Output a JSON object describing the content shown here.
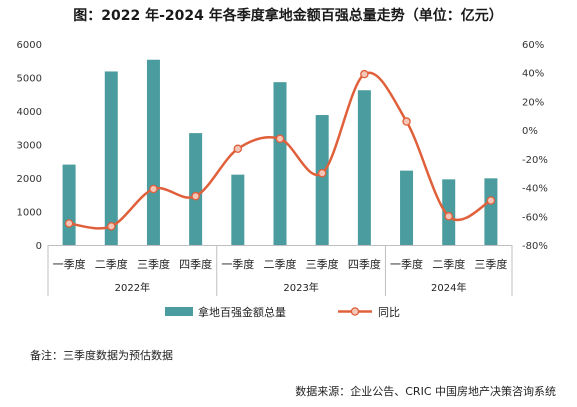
{
  "title": "图：2022 年-2024 年各季度拿地金额百强总量走势（单位：亿元）",
  "note": "备注：三季度数据为预估数据",
  "source": "数据来源：企业公告、CRIC 中国房地产决策咨询系统",
  "colors": {
    "bar": "#4a9c9e",
    "line": "#e0603b",
    "marker_fill": "#f3c6b8"
  },
  "chart_data": {
    "type": "bar",
    "title": "图：2022 年-2024 年各季度拿地金额百强总量走势（单位：亿元）",
    "categories": [
      "一季度",
      "二季度",
      "三季度",
      "四季度",
      "一季度",
      "二季度",
      "三季度",
      "四季度",
      "一季度",
      "二季度",
      "三季度"
    ],
    "groups": [
      {
        "label": "2022年",
        "count": 4
      },
      {
        "label": "2023年",
        "count": 4
      },
      {
        "label": "2024年",
        "count": 3
      }
    ],
    "series": [
      {
        "name": "拿地百强金额总量",
        "type": "bar",
        "axis": "left",
        "values": [
          2400,
          5180,
          5530,
          3340,
          2100,
          4860,
          3880,
          4620,
          2220,
          1960,
          1990
        ]
      },
      {
        "name": "同比",
        "type": "line",
        "axis": "right",
        "unit": "%",
        "values": [
          -65,
          -67,
          -41,
          -46,
          -13,
          -6,
          -30,
          39,
          6,
          -60,
          -49
        ]
      }
    ],
    "y_left": {
      "range": [
        0,
        6000
      ],
      "ticks": [
        "0",
        "1000",
        "2000",
        "3000",
        "4000",
        "5000",
        "6000"
      ]
    },
    "y_right": {
      "range": [
        -80,
        60
      ],
      "ticks": [
        "-80%",
        "-60%",
        "-40%",
        "-20%",
        "0%",
        "20%",
        "40%",
        "60%"
      ]
    },
    "legend_position": "bottom",
    "grid": false
  }
}
